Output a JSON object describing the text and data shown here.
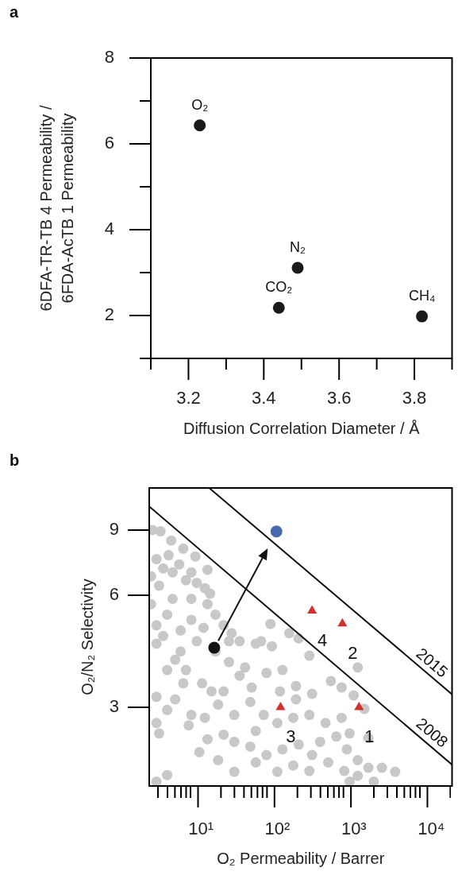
{
  "chart_data": [
    {
      "type": "scatter",
      "xlabel": "Diffusion Correlation Diameter / Å",
      "ylabel": "6DFA-TR-TB 4 Permeability / 6FDA-AcTB 1 Permeability",
      "annotations": [
        "a",
        {
          "text": "O₂",
          "x": 3.23,
          "y": 6.43
        },
        {
          "text": "CO₂",
          "x": 3.44,
          "y": 2.18
        },
        {
          "text": "N₂",
          "x": 3.49,
          "y": 3.11
        },
        {
          "text": "CH₄",
          "x": 3.82,
          "y": 1.98
        }
      ],
      "x": [
        3.23,
        3.44,
        3.49,
        3.82
      ],
      "values": [
        6.43,
        2.18,
        3.11,
        1.98
      ],
      "color": "#1a1a1a",
      "marker": "circle",
      "xlim": [
        3.1,
        3.9
      ],
      "ylim": [
        1,
        8
      ],
      "xticks": [
        {
          "value": 3.1,
          "label": null
        },
        3.2,
        {
          "value": 3.3,
          "label": null
        },
        3.4,
        {
          "value": 3.5,
          "label": null
        },
        3.6,
        {
          "value": 3.7,
          "label": null
        },
        3.8,
        {
          "value": 3.9,
          "label": null
        }
      ],
      "yticks": [
        {
          "value": 1,
          "label": null
        },
        2,
        {
          "value": 3,
          "label": null
        },
        4,
        {
          "value": 5,
          "label": null
        },
        6,
        {
          "value": 7,
          "label": null
        },
        8
      ],
      "legend": false
    },
    {
      "type": "scatter",
      "xlabel": "O₂ Permeability / Barrer",
      "ylabel": "O₂/N₂ Selectivity",
      "annotations": [
        "b",
        {
          "text": "4",
          "x": 310,
          "y": 5.46
        },
        {
          "text": "2",
          "x": 773,
          "y": 5.04
        },
        {
          "text": "3",
          "x": 120,
          "y": 3.0
        },
        {
          "text": "1",
          "x": 1274,
          "y": 3.0
        },
        {
          "text": "2015",
          "x": 9230,
          "y": 3.75
        },
        {
          "text": "2008",
          "x": 9230,
          "y": 2.43
        }
      ],
      "series": [
        {
          "color": "#c8c8c8",
          "marker": "circle",
          "x": [
            2.54,
            3.23,
            4.12,
            2.86,
            13.3,
            4.65,
            6.95,
            9.62,
            12.3,
            14.4,
            3.1,
            4.65,
            8.18,
            13.3,
            16.9,
            21.6,
            27.5,
            35.0,
            88.6,
            156,
            207,
            66.8,
            92.3,
            2.86,
            3.95,
            5.92,
            2.86,
            5.92,
            9.62,
            25.4,
            56.9,
            3.95,
            6.95,
            11.3,
            25.4,
            41.2,
            78.5,
            127,
            286,
            191,
            310,
            546,
            755,
            1225,
            1086,
            2.86,
            3.95,
            2.86,
            3.1,
            7.55,
            12.3,
            18.3,
            29.8,
            48.3,
            72.4,
            109,
            176,
            286,
            465,
            755,
            961,
            1500,
            1690,
            10.4,
            18.3,
            29.8,
            48.3,
            78.5,
            127,
            207,
            395,
            643,
            885,
            1225,
            1690,
            2540,
            3790,
            818,
            1225,
            286,
            176,
            109,
            29.8,
            3.95,
            2.86,
            1990,
            961,
            4.46,
            6.41,
            9.23,
            3.5,
            5.68,
            8.18,
            2.43,
            2.43,
            3.5,
            5.03,
            8.18,
            11.8,
            16.9,
            6.41,
            15.0,
            35.0,
            50.4,
            21.6,
            56.9,
            21.6,
            8.18,
            5.03,
            13.3,
            191,
            118,
            310,
            504,
            56.9
          ],
          "values": [
            9.01,
            8.94,
            7.71,
            7.52,
            7.04,
            6.93,
            6.6,
            6.49,
            6.28,
            6.07,
            6.38,
            5.88,
            5.88,
            5.69,
            5.33,
            4.99,
            4.75,
            4.52,
            5.03,
            4.75,
            4.6,
            4.52,
            4.38,
            4.99,
            5.33,
            4.83,
            4.45,
            4.24,
            4.52,
            4.52,
            4.45,
            3.78,
            3.78,
            3.48,
            3.97,
            3.84,
            3.71,
            3.78,
            4.13,
            3.42,
            3.26,
            3.53,
            3.39,
            3.84,
            3.23,
            3.2,
            2.95,
            2.72,
            2.55,
            2.68,
            2.81,
            3.05,
            2.86,
            3.1,
            2.86,
            2.72,
            2.81,
            2.86,
            2.72,
            2.81,
            2.55,
            2.97,
            2.48,
            2.27,
            2.16,
            2.42,
            2.35,
            2.23,
            2.31,
            2.38,
            2.42,
            2.5,
            2.31,
            2.16,
            2.06,
            2.06,
            2.01,
            2.02,
            1.96,
            2.02,
            2.09,
            2.01,
            2.01,
            1.97,
            1.89,
            1.89,
            1.89,
            8.44,
            8.03,
            7.65,
            7.1,
            7.28,
            6.93,
            6.76,
            5.69,
            4.67,
            4.03,
            5.16,
            4.91,
            4.24,
            3.48,
            3.31,
            3.65,
            3.39,
            3.31,
            2.59,
            2.53,
            2.86,
            3.15,
            2.46,
            3.15,
            3.31,
            2.23,
            2.13,
            2.13
          ]
        },
        {
          "type": "line",
          "color": "#111111",
          "marker": "none",
          "x": [
            2.3,
            21000
          ],
          "values": [
            10.43,
            2.1
          ]
        },
        {
          "type": "line",
          "color": "#111111",
          "marker": "none",
          "x": [
            14,
            21000
          ],
          "values": [
            11.7,
            3.25
          ]
        },
        {
          "color": "#111111",
          "marker": "circle",
          "x": [
            16.3
          ],
          "values": [
            4.34
          ]
        },
        {
          "color": "#4a68b0",
          "marker": "circle",
          "x": [
            106
          ],
          "values": [
            8.93
          ]
        },
        {
          "color": "#d2322d",
          "marker": "triangle",
          "x": [
            310,
            773,
            120,
            1274
          ],
          "values": [
            5.46,
            5.04,
            3.0,
            3.0
          ]
        }
      ],
      "xlim": [
        2.3,
        21000
      ],
      "ylim": [
        1.84,
        11.7
      ],
      "log": "xy",
      "xticks": [
        {
          "value": 10,
          "label": "10¹"
        },
        {
          "value": 100,
          "label": "10²"
        },
        {
          "value": 1000,
          "label": "10³"
        },
        {
          "value": 10000,
          "label": "10⁴"
        }
      ],
      "yticks": [
        3,
        6,
        9
      ],
      "legend": false
    }
  ]
}
